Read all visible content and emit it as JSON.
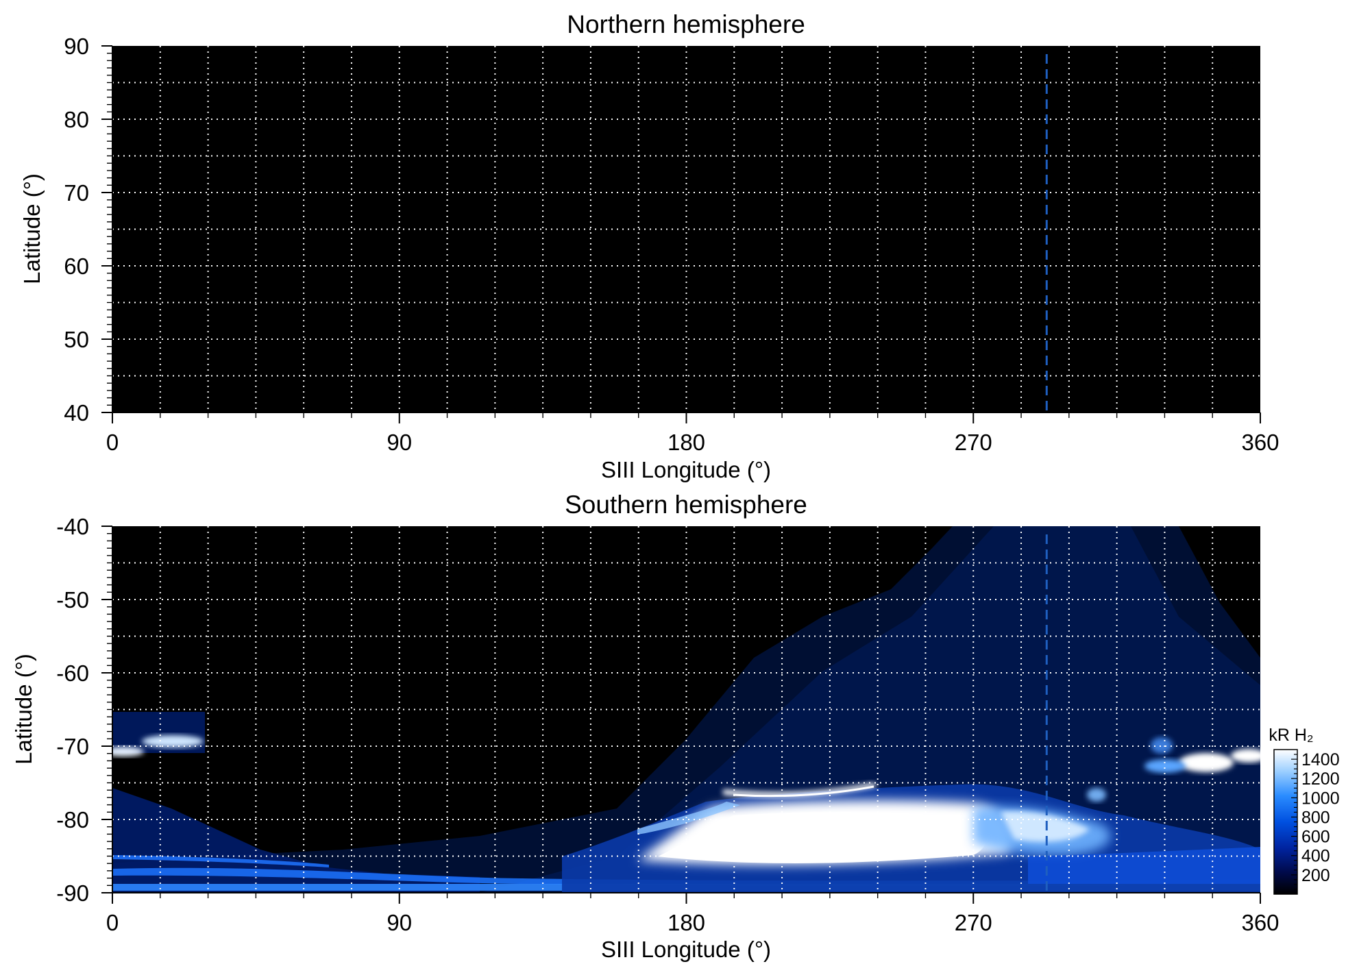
{
  "chart_data": [
    {
      "type": "heatmap",
      "title": "Northern hemisphere",
      "xlabel": "SIII Longitude (°)",
      "ylabel": "Latitude (°)",
      "xlim": [
        0,
        360
      ],
      "ylim": [
        40,
        90
      ],
      "x_ticks": [
        0,
        90,
        180,
        270,
        360
      ],
      "y_ticks": [
        40,
        50,
        60,
        70,
        80,
        90
      ],
      "grid": true,
      "reference_line_longitude": 293,
      "reference_line_color": "#1f5fbf",
      "background_color": "#000000",
      "emission": "none"
    },
    {
      "type": "heatmap",
      "title": "Southern hemisphere",
      "xlabel": "SIII Longitude (°)",
      "ylabel": "Latitude (°)",
      "xlim": [
        0,
        360
      ],
      "ylim": [
        -90,
        -40
      ],
      "x_ticks": [
        0,
        90,
        180,
        270,
        360
      ],
      "y_ticks": [
        -90,
        -80,
        -70,
        -60,
        -50,
        -40
      ],
      "grid": true,
      "reference_line_longitude": 293,
      "reference_line_color": "#1f5fbf",
      "background_color": "#000000",
      "colorbar": {
        "label": "kR H₂",
        "range": [
          0,
          1500
        ],
        "ticks": [
          200,
          400,
          600,
          800,
          1000,
          1200,
          1400
        ],
        "colors": [
          "#000000",
          "#000a4a",
          "#0024a0",
          "#0050e0",
          "#2a8cff",
          "#9ccfff",
          "#ffffff"
        ]
      },
      "emission": "auroral oval concentrated between -80 and -90 latitude, 170-330 longitude"
    }
  ]
}
